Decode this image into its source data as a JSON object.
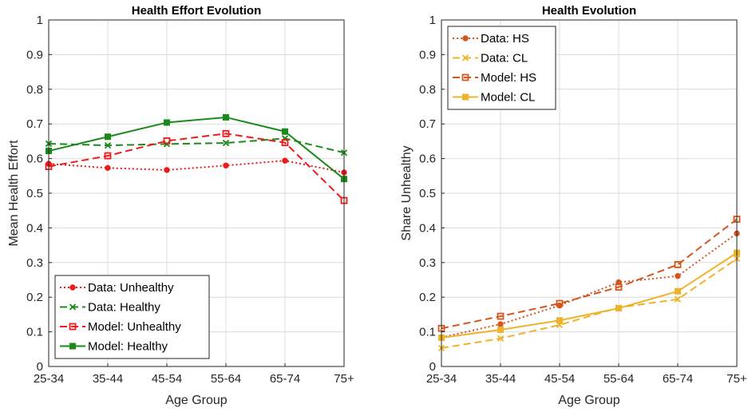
{
  "chart_data": [
    {
      "type": "line",
      "title": "Health Effort Evolution",
      "xlabel": "Age Group",
      "ylabel": "Mean Health Effort",
      "categories": [
        "25-34",
        "35-44",
        "45-54",
        "55-64",
        "65-74",
        "75+"
      ],
      "ylim": [
        0,
        1
      ],
      "yticks": [
        "0",
        "0.1",
        "0.2",
        "0.3",
        "0.4",
        "0.5",
        "0.6",
        "0.7",
        "0.8",
        "0.9",
        "1"
      ],
      "grid": true,
      "legend_position": "bottom-left",
      "series": [
        {
          "name": "Data: Unhealthy",
          "values": [
            0.585,
            0.573,
            0.567,
            0.58,
            0.594,
            0.56
          ],
          "color": "#ee1b1b",
          "style": "dotted",
          "marker": "dot"
        },
        {
          "name": "Data: Healthy",
          "values": [
            0.643,
            0.638,
            0.642,
            0.645,
            0.658,
            0.617
          ],
          "color": "#1a8a1a",
          "style": "dashed",
          "marker": "x"
        },
        {
          "name": "Model: Unhealthy",
          "values": [
            0.577,
            0.608,
            0.651,
            0.672,
            0.646,
            0.479
          ],
          "color": "#ee1b1b",
          "style": "dashed",
          "marker": "square-open"
        },
        {
          "name": "Model: Healthy",
          "values": [
            0.622,
            0.663,
            0.704,
            0.719,
            0.678,
            0.541
          ],
          "color": "#1a8a1a",
          "style": "solid",
          "marker": "square"
        }
      ]
    },
    {
      "type": "line",
      "title": "Health Evolution",
      "xlabel": "Age Group",
      "ylabel": "Share Unhealthy",
      "categories": [
        "25-34",
        "35-44",
        "45-54",
        "55-64",
        "65-74",
        "75+"
      ],
      "ylim": [
        0,
        1
      ],
      "yticks": [
        "0",
        "0.1",
        "0.2",
        "0.3",
        "0.4",
        "0.5",
        "0.6",
        "0.7",
        "0.8",
        "0.9",
        "1"
      ],
      "grid": true,
      "legend_position": "top-left",
      "series": [
        {
          "name": "Data: HS",
          "values": [
            0.084,
            0.122,
            0.176,
            0.243,
            0.261,
            0.384
          ],
          "color": "#d4561f",
          "style": "dotted",
          "marker": "dot"
        },
        {
          "name": "Data: CL",
          "values": [
            0.053,
            0.081,
            0.12,
            0.17,
            0.194,
            0.311
          ],
          "color": "#eeb32a",
          "style": "dashed",
          "marker": "x"
        },
        {
          "name": "Model: HS",
          "values": [
            0.11,
            0.145,
            0.182,
            0.229,
            0.294,
            0.425
          ],
          "color": "#d4561f",
          "style": "dashed",
          "marker": "square-open"
        },
        {
          "name": "Model: CL",
          "values": [
            0.083,
            0.106,
            0.133,
            0.168,
            0.217,
            0.328
          ],
          "color": "#eeb32a",
          "style": "solid",
          "marker": "square"
        }
      ]
    }
  ]
}
